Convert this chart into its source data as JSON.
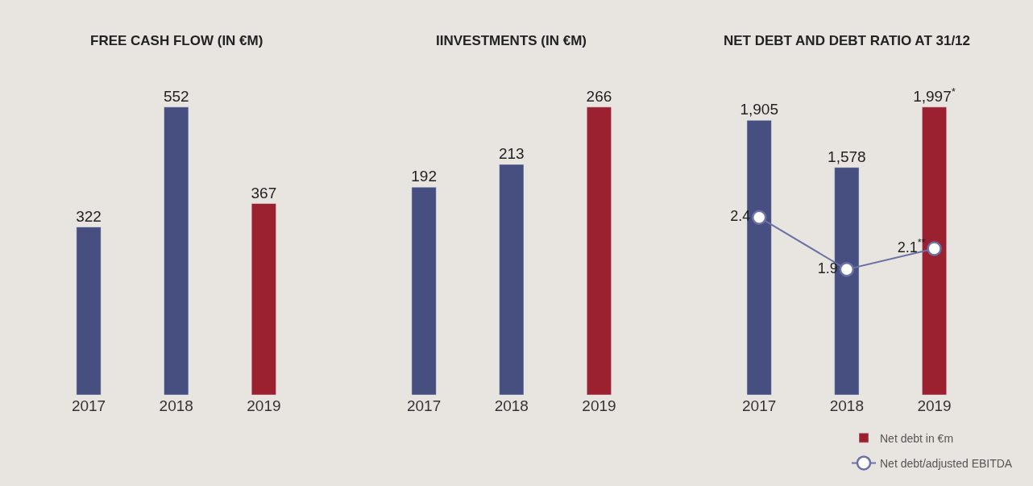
{
  "chart_data": [
    {
      "type": "bar",
      "title": "FREE CASH FLOW (IN €M)",
      "categories": [
        "2017",
        "2018",
        "2019"
      ],
      "values": [
        322,
        552,
        367
      ],
      "colors": [
        "#464f7f",
        "#464f7f",
        "#9b2030"
      ],
      "data_labels": true,
      "grid": false,
      "legend": false
    },
    {
      "type": "bar",
      "title": "IINVESTMENTS (IN €M)",
      "categories": [
        "2017",
        "2018",
        "2019"
      ],
      "values": [
        192,
        213,
        266
      ],
      "colors": [
        "#464f7f",
        "#464f7f",
        "#9b2030"
      ],
      "data_labels": true,
      "grid": false,
      "legend": false
    },
    {
      "type": "bar",
      "title": "NET DEBT AND DEBT RATIO AT 31/12",
      "categories": [
        "2017",
        "2018",
        "2019"
      ],
      "grid": false,
      "legend": "bottom right",
      "series": [
        {
          "type": "bar",
          "name": "Net debt in €m",
          "color": "#9b2030",
          "colors": [
            "#464f7f",
            "#464f7f",
            "#9b2030"
          ],
          "values": [
            1905,
            1578,
            1997
          ],
          "value_labels": [
            "1,905",
            "1,578",
            "1,997$^{*}$"
          ]
        },
        {
          "type": "line",
          "name": "Net debt/adjusted EBITDA",
          "color": "#6b73a6",
          "axis": "y2",
          "marker": "circle",
          "values": [
            2.4,
            1.9,
            2.1
          ],
          "value_labels": [
            "2.4",
            "1.9",
            "2.1$^{**}$"
          ]
        }
      ]
    }
  ]
}
